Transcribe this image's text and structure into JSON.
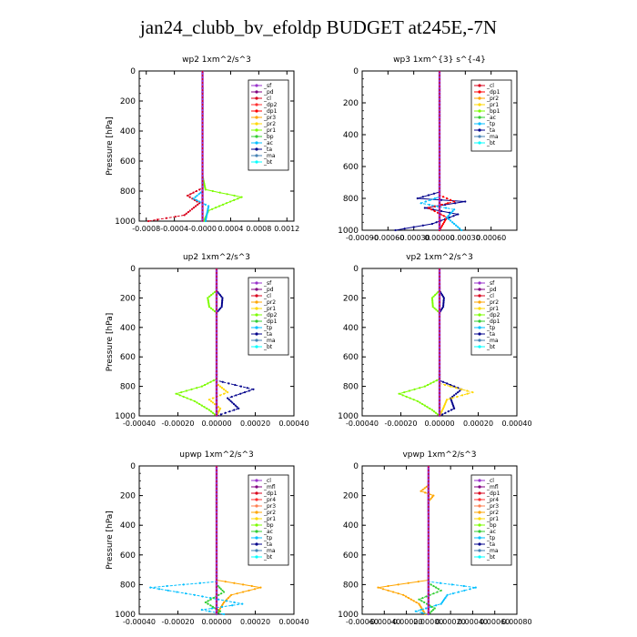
{
  "figure_title": "jan24_clubb_bv_efoldp  BUDGET at245E,-7N",
  "chart_data": [
    {
      "type": "line",
      "title": "wp2   1xm^2/s^3",
      "ylabel": "Pressure [hPa]",
      "ylim": [
        1000,
        0
      ],
      "yticks": [
        "0",
        "200",
        "400",
        "600",
        "800",
        "1000"
      ],
      "xticks": [
        "-0.0008",
        "-0.0004",
        "-0.0000",
        "0.0004",
        "0.0008",
        "0.0012"
      ],
      "xlim": [
        -0.0009,
        0.0013
      ],
      "legend_placement": "top-right",
      "series": [
        {
          "name": "_sf",
          "color": "#9932cc"
        },
        {
          "name": "_pd",
          "color": "#800080"
        },
        {
          "name": "_cl",
          "color": "#d9001b"
        },
        {
          "name": "_dp2",
          "color": "#ff3030"
        },
        {
          "name": "_dp1",
          "color": "#ff0000"
        },
        {
          "name": "_pr3",
          "color": "#ffa500"
        },
        {
          "name": "_pr2",
          "color": "#ffd700"
        },
        {
          "name": "_pr1",
          "color": "#7cfc00"
        },
        {
          "name": "_bp",
          "color": "#32cd32"
        },
        {
          "name": "_ac",
          "color": "#00bfff"
        },
        {
          "name": "_ta",
          "color": "#00008b"
        },
        {
          "name": "_ma",
          "color": "#4682b4"
        },
        {
          "name": "_bt",
          "color": "#00ffff"
        }
      ]
    },
    {
      "type": "line",
      "title": "wp3   1xm^{3} s^{-4}",
      "ylabel": "",
      "ylim": [
        1000,
        0
      ],
      "yticks": [
        "0",
        "200",
        "400",
        "600",
        "800",
        "1000"
      ],
      "xticks": [
        "-0.00090",
        "-0.00060",
        "-0.00030",
        "0.00000",
        "0.00030",
        "0.00060"
      ],
      "xlim": [
        -0.0009,
        0.0009
      ],
      "legend_placement": "top-right",
      "series": [
        {
          "name": "_cl",
          "color": "#d9001b"
        },
        {
          "name": "_dp1",
          "color": "#ff0000"
        },
        {
          "name": "_pr2",
          "color": "#ffa500"
        },
        {
          "name": "_pr1",
          "color": "#ffd700"
        },
        {
          "name": "_bp1",
          "color": "#7cfc00"
        },
        {
          "name": "_ac",
          "color": "#32cd32"
        },
        {
          "name": "_tp",
          "color": "#00bfff"
        },
        {
          "name": "_ta",
          "color": "#00008b"
        },
        {
          "name": "_ma",
          "color": "#4682b4"
        },
        {
          "name": "_bt",
          "color": "#00ffff"
        }
      ]
    },
    {
      "type": "line",
      "title": "up2   1xm^2/s^3",
      "ylabel": "Pressure [hPa]",
      "ylim": [
        1000,
        0
      ],
      "yticks": [
        "0",
        "200",
        "400",
        "600",
        "800",
        "1000"
      ],
      "xticks": [
        "-0.00040",
        "-0.00020",
        "0.00000",
        "0.00020",
        "0.00040"
      ],
      "xlim": [
        -0.0004,
        0.0004
      ],
      "legend_placement": "top-right",
      "series": [
        {
          "name": "_sf",
          "color": "#9932cc"
        },
        {
          "name": "_pd",
          "color": "#800080"
        },
        {
          "name": "_cl",
          "color": "#d9001b"
        },
        {
          "name": "_pr2",
          "color": "#ffa500"
        },
        {
          "name": "_pr1",
          "color": "#ffd700"
        },
        {
          "name": "_dp2",
          "color": "#7cfc00"
        },
        {
          "name": "_dp1",
          "color": "#32cd32"
        },
        {
          "name": "_tp",
          "color": "#00bfff"
        },
        {
          "name": "_ta",
          "color": "#00008b"
        },
        {
          "name": "_ma",
          "color": "#4682b4"
        },
        {
          "name": "_bt",
          "color": "#00ffff"
        }
      ]
    },
    {
      "type": "line",
      "title": "vp2   1xm^2/s^3",
      "ylabel": "",
      "ylim": [
        1000,
        0
      ],
      "yticks": [
        "0",
        "200",
        "400",
        "600",
        "800",
        "1000"
      ],
      "xticks": [
        "-0.00040",
        "-0.00020",
        "0.00000",
        "0.00020",
        "0.00040"
      ],
      "xlim": [
        -0.0004,
        0.0004
      ],
      "legend_placement": "top-right",
      "series": [
        {
          "name": "_sf",
          "color": "#9932cc"
        },
        {
          "name": "_pd",
          "color": "#800080"
        },
        {
          "name": "_cl",
          "color": "#d9001b"
        },
        {
          "name": "_pr2",
          "color": "#ffa500"
        },
        {
          "name": "_pr1",
          "color": "#ffd700"
        },
        {
          "name": "_dp2",
          "color": "#7cfc00"
        },
        {
          "name": "_dp1",
          "color": "#32cd32"
        },
        {
          "name": "_tp",
          "color": "#00bfff"
        },
        {
          "name": "_ta",
          "color": "#00008b"
        },
        {
          "name": "_ma",
          "color": "#4682b4"
        },
        {
          "name": "_bt",
          "color": "#00ffff"
        }
      ]
    },
    {
      "type": "line",
      "title": "upwp   1xm^2/s^3",
      "ylabel": "Pressure [hPa]",
      "ylim": [
        1000,
        0
      ],
      "yticks": [
        "0",
        "200",
        "400",
        "600",
        "800",
        "1000"
      ],
      "xticks": [
        "-0.00040",
        "-0.00020",
        "0.00000",
        "0.00020",
        "0.00040"
      ],
      "xlim": [
        -0.0004,
        0.0004
      ],
      "legend_placement": "top-right",
      "series": [
        {
          "name": "_cl",
          "color": "#9932cc"
        },
        {
          "name": "_mfl",
          "color": "#800080"
        },
        {
          "name": "_dp1",
          "color": "#d9001b"
        },
        {
          "name": "_pr4",
          "color": "#ff3030"
        },
        {
          "name": "_pr3",
          "color": "#ff7f50"
        },
        {
          "name": "_pr2",
          "color": "#ffa500"
        },
        {
          "name": "_pr1",
          "color": "#ffd700"
        },
        {
          "name": "_bp",
          "color": "#7cfc00"
        },
        {
          "name": "_ac",
          "color": "#32cd32"
        },
        {
          "name": "_tp",
          "color": "#00bfff"
        },
        {
          "name": "_ta",
          "color": "#00008b"
        },
        {
          "name": "_ma",
          "color": "#4682b4"
        },
        {
          "name": "_bt",
          "color": "#00ffff"
        }
      ]
    },
    {
      "type": "line",
      "title": "vpwp   1xm^2/s^3",
      "ylabel": "",
      "ylim": [
        1000,
        0
      ],
      "yticks": [
        "0",
        "200",
        "400",
        "600",
        "800",
        "1000"
      ],
      "xticks": [
        "-0.00060",
        "-0.00040",
        "-0.00020",
        "0.00000",
        "0.00020",
        "0.00040",
        "0.00060",
        "0.00080"
      ],
      "xlim": [
        -0.0006,
        0.0008
      ],
      "legend_placement": "top-right",
      "series": [
        {
          "name": "_cl",
          "color": "#9932cc"
        },
        {
          "name": "_mfl",
          "color": "#800080"
        },
        {
          "name": "_dp1",
          "color": "#d9001b"
        },
        {
          "name": "_pr4",
          "color": "#ff3030"
        },
        {
          "name": "_pr3",
          "color": "#ff7f50"
        },
        {
          "name": "_pr2",
          "color": "#ffa500"
        },
        {
          "name": "_pr1",
          "color": "#ffd700"
        },
        {
          "name": "_bp",
          "color": "#7cfc00"
        },
        {
          "name": "_ac",
          "color": "#32cd32"
        },
        {
          "name": "_tp",
          "color": "#00bfff"
        },
        {
          "name": "_ta",
          "color": "#00008b"
        },
        {
          "name": "_ma",
          "color": "#4682b4"
        },
        {
          "name": "_bt",
          "color": "#00ffff"
        }
      ]
    }
  ]
}
